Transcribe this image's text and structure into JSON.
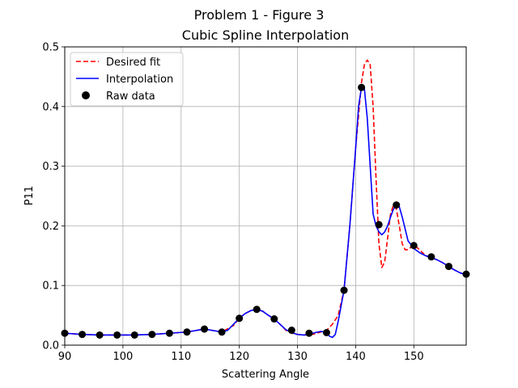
{
  "chart_data": {
    "type": "line",
    "suptitle": "Problem 1 - Figure 3",
    "title": "Cubic Spline Interpolation",
    "xlabel": "Scattering Angle",
    "ylabel": "P11",
    "xlim": [
      90,
      159
    ],
    "ylim": [
      0,
      0.5
    ],
    "xticks": [
      "90",
      "100",
      "110",
      "120",
      "130",
      "140",
      "150"
    ],
    "yticks": [
      "0.0",
      "0.1",
      "0.2",
      "0.3",
      "0.4",
      "0.5"
    ],
    "grid": true,
    "legend_position": "top-left",
    "series": [
      {
        "name": "Desired fit",
        "style": "dashed",
        "color": "#ff0000",
        "x": [
          90,
          93,
          96,
          99,
          102,
          105,
          108,
          111,
          114,
          117,
          119,
          120,
          121,
          122,
          123,
          124,
          125,
          126,
          127,
          128,
          129,
          130,
          131,
          132,
          133,
          134,
          135,
          136,
          137,
          138,
          139,
          140,
          141,
          141.5,
          142,
          142.5,
          143,
          143.5,
          144,
          144.5,
          145,
          145.5,
          146,
          146.5,
          147,
          147.5,
          148,
          148.5,
          149,
          150,
          151,
          152,
          153,
          154,
          155,
          156,
          157,
          158,
          159
        ],
        "y": [
          0.02,
          0.018,
          0.017,
          0.017,
          0.017,
          0.018,
          0.02,
          0.022,
          0.027,
          0.022,
          0.033,
          0.045,
          0.053,
          0.058,
          0.06,
          0.057,
          0.05,
          0.044,
          0.035,
          0.025,
          0.02,
          0.018,
          0.017,
          0.017,
          0.019,
          0.022,
          0.025,
          0.035,
          0.05,
          0.092,
          0.2,
          0.33,
          0.44,
          0.47,
          0.478,
          0.47,
          0.4,
          0.28,
          0.17,
          0.13,
          0.14,
          0.18,
          0.22,
          0.235,
          0.228,
          0.2,
          0.17,
          0.16,
          0.16,
          0.168,
          0.16,
          0.15,
          0.147,
          0.143,
          0.138,
          0.131,
          0.126,
          0.121,
          0.118
        ]
      },
      {
        "name": "Interpolation",
        "style": "solid",
        "color": "#0000ff",
        "x": [
          90,
          93,
          96,
          99,
          102,
          105,
          108,
          111,
          114,
          117,
          118,
          119,
          120,
          121,
          122,
          123,
          124,
          125,
          126,
          127,
          128,
          129,
          130,
          131,
          132,
          133,
          134,
          135,
          135.5,
          136,
          136.5,
          137,
          138,
          139,
          140,
          140.5,
          141,
          141.5,
          142,
          142.5,
          143,
          143.5,
          144,
          144.5,
          145,
          145.5,
          146,
          146.5,
          147,
          147.5,
          148,
          148.5,
          149,
          150,
          151,
          152,
          153,
          154,
          155,
          156,
          157,
          158,
          159
        ],
        "y": [
          0.02,
          0.018,
          0.017,
          0.017,
          0.017,
          0.018,
          0.02,
          0.022,
          0.027,
          0.022,
          0.025,
          0.035,
          0.045,
          0.053,
          0.058,
          0.06,
          0.057,
          0.05,
          0.044,
          0.035,
          0.026,
          0.021,
          0.018,
          0.017,
          0.018,
          0.021,
          0.023,
          0.022,
          0.015,
          0.013,
          0.018,
          0.04,
          0.092,
          0.2,
          0.33,
          0.4,
          0.432,
          0.43,
          0.38,
          0.3,
          0.22,
          0.2,
          0.19,
          0.185,
          0.19,
          0.2,
          0.215,
          0.228,
          0.235,
          0.232,
          0.215,
          0.195,
          0.175,
          0.162,
          0.155,
          0.15,
          0.147,
          0.143,
          0.138,
          0.132,
          0.126,
          0.121,
          0.118
        ]
      },
      {
        "name": "Raw data",
        "style": "markers",
        "color": "#000000",
        "x": [
          90,
          93,
          96,
          99,
          102,
          105,
          108,
          111,
          114,
          117,
          120,
          123,
          126,
          129,
          132,
          135,
          138,
          141,
          144,
          147,
          150,
          153,
          156,
          159
        ],
        "y": [
          0.02,
          0.018,
          0.017,
          0.017,
          0.017,
          0.018,
          0.02,
          0.022,
          0.027,
          0.022,
          0.045,
          0.06,
          0.044,
          0.025,
          0.02,
          0.021,
          0.092,
          0.432,
          0.202,
          0.235,
          0.167,
          0.148,
          0.132,
          0.119
        ]
      }
    ]
  }
}
